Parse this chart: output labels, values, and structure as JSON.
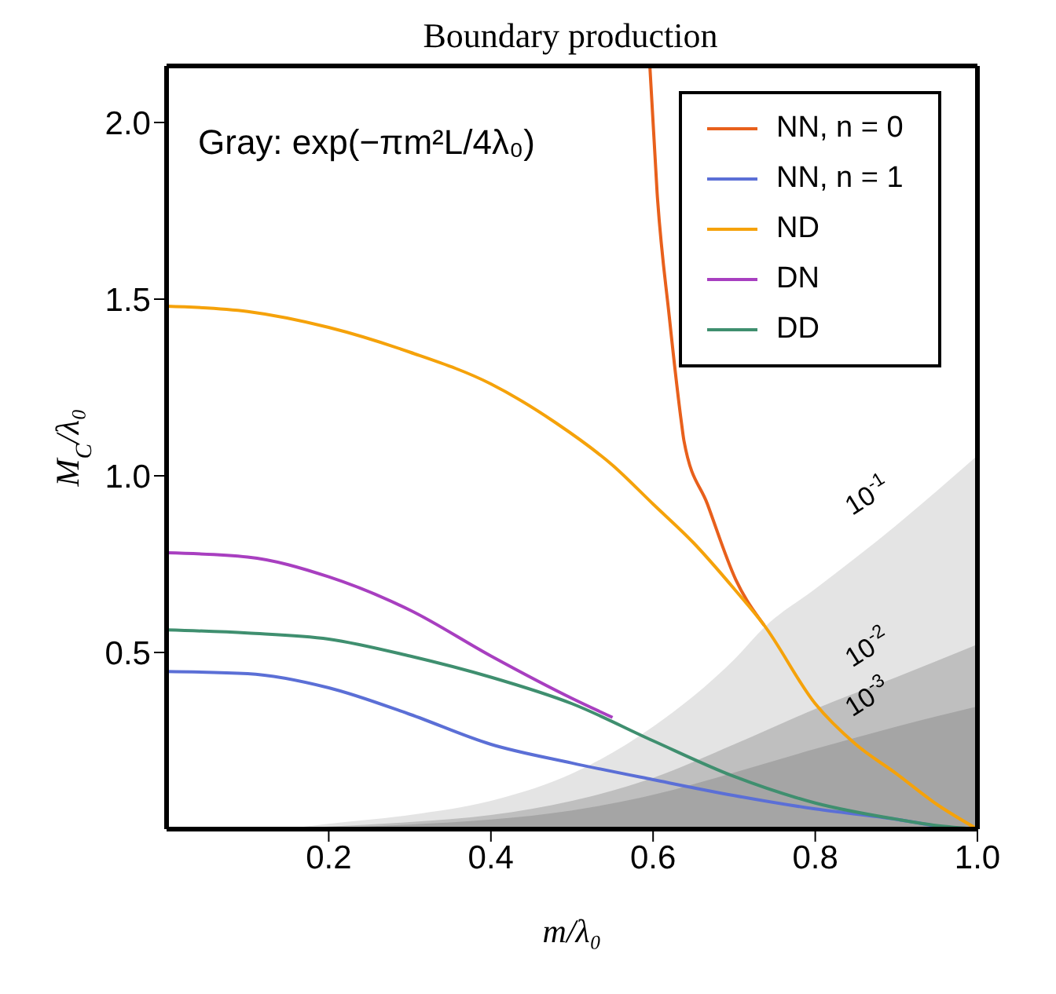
{
  "chart_data": {
    "type": "line",
    "title": "Boundary production",
    "xlabel": "m/λ₀",
    "ylabel": "M$_{C}$/λ₀",
    "annotations": [
      "Gray: exp(−πm²L/4λ₀)"
    ],
    "xlim": [
      0,
      1
    ],
    "ylim": [
      0,
      2.16
    ],
    "xticks": [
      0.2,
      0.4,
      0.6,
      0.8,
      {
        "value": 1,
        "label": "1.0"
      }
    ],
    "yticks": [
      0.5,
      {
        "value": 1,
        "label": "1.0"
      },
      1.5,
      {
        "value": 2,
        "label": "2.0"
      }
    ],
    "grid": false,
    "legend": "top right",
    "marker": "none",
    "line_style": "solid",
    "series": [
      {
        "type": "area",
        "name": "10$^{-1}$",
        "color": "#e4e4e4",
        "x": [
          0,
          0.1,
          0.15,
          0.2,
          0.3,
          0.4,
          0.5,
          0.6,
          0.7,
          0.74,
          0.8,
          0.9,
          1
        ],
        "values": [
          0,
          0,
          0.003,
          0.015,
          0.04,
          0.08,
          0.157,
          0.29,
          0.48,
          0.577,
          0.68,
          0.86,
          1.057
        ]
      },
      {
        "type": "area",
        "name": "10$^{-2}$",
        "color": "#bfbfbf",
        "x": [
          0,
          0.1,
          0.2,
          0.3,
          0.4,
          0.5,
          0.6,
          0.7,
          0.8,
          0.9,
          1
        ],
        "values": [
          0,
          0,
          0.007,
          0.02,
          0.04,
          0.08,
          0.145,
          0.24,
          0.34,
          0.43,
          0.523
        ]
      },
      {
        "type": "area",
        "name": "10$^{-3}$",
        "color": "#a5a5a5",
        "x": [
          0,
          0.1,
          0.2,
          0.3,
          0.4,
          0.5,
          0.6,
          0.7,
          0.8,
          0.9,
          1
        ],
        "values": [
          0,
          0,
          0.004,
          0.013,
          0.027,
          0.053,
          0.097,
          0.16,
          0.227,
          0.29,
          0.347
        ]
      },
      {
        "name": "NN, n = 0",
        "color": "#e8601c",
        "x": [
          0.596,
          0.605,
          0.62,
          0.635,
          0.638,
          0.667,
          0.702,
          0.737
        ],
        "values": [
          2.16,
          1.8,
          1.45,
          1.15,
          1.1,
          0.92,
          0.706,
          0.577
        ]
      },
      {
        "name": "NN, n = 1",
        "color": "#5b6fd6",
        "x": [
          0,
          0.1,
          0.2,
          0.3,
          0.4,
          0.5,
          0.6,
          0.7,
          0.8,
          0.9,
          0.97
        ],
        "values": [
          0.446,
          0.44,
          0.4,
          0.325,
          0.24,
          0.187,
          0.14,
          0.095,
          0.057,
          0.028,
          0
        ]
      },
      {
        "name": "ND",
        "color": "#f5a20a",
        "x": [
          0,
          0.1,
          0.2,
          0.3,
          0.4,
          0.48,
          0.55,
          0.6,
          0.65,
          0.7,
          0.737,
          0.8,
          0.85,
          0.9,
          0.95,
          1
        ],
        "values": [
          1.48,
          1.465,
          1.42,
          1.35,
          1.26,
          1.15,
          1.03,
          0.92,
          0.81,
          0.68,
          0.577,
          0.355,
          0.24,
          0.157,
          0.07,
          0
        ]
      },
      {
        "name": "DN",
        "color": "#a83fc0",
        "x": [
          0,
          0.1,
          0.2,
          0.3,
          0.4,
          0.5,
          0.55
        ],
        "values": [
          0.782,
          0.77,
          0.714,
          0.62,
          0.49,
          0.37,
          0.316
        ]
      },
      {
        "name": "DD",
        "color": "#3f8f6f",
        "x": [
          0,
          0.1,
          0.2,
          0.3,
          0.4,
          0.5,
          0.6,
          0.7,
          0.8,
          0.9,
          0.95,
          1
        ],
        "values": [
          0.564,
          0.555,
          0.538,
          0.49,
          0.43,
          0.355,
          0.25,
          0.149,
          0.074,
          0.028,
          0.01,
          0
        ]
      }
    ]
  }
}
